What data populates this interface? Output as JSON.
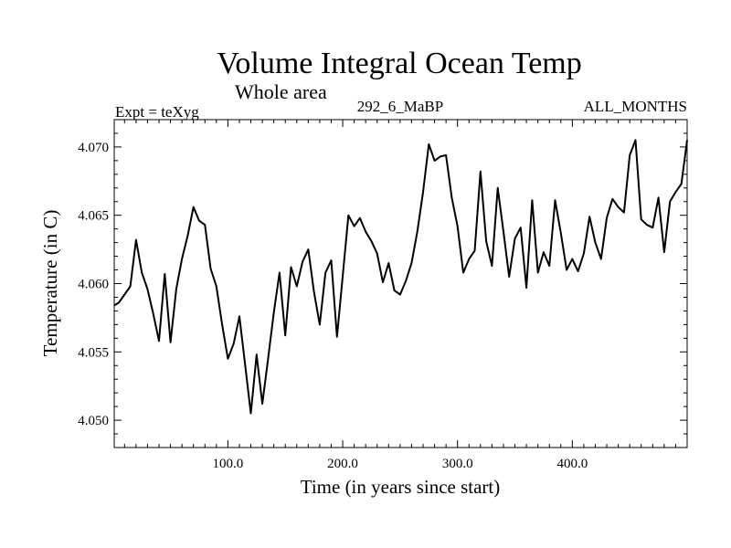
{
  "chart_data": {
    "type": "line",
    "title": "Volume Integral Ocean Temp",
    "subtitle": "Whole area",
    "left_label": "Expt = teXyg",
    "center_label": "292_6_MaBP",
    "right_label": "ALL_MONTHS",
    "xlabel": "Time (in years since start)",
    "ylabel": "Temperature (in C)",
    "xlim": [
      1,
      500
    ],
    "ylim": [
      4.048,
      4.072
    ],
    "x_ticks": [
      100,
      200,
      300,
      400
    ],
    "x_tick_labels": [
      "100.0",
      "200.0",
      "300.0",
      "400.0"
    ],
    "y_ticks": [
      4.05,
      4.055,
      4.06,
      4.065,
      4.07
    ],
    "y_tick_labels": [
      "4.050",
      "4.055",
      "4.060",
      "4.065",
      "4.070"
    ],
    "grid": false,
    "line_color": "#000000",
    "series": [
      {
        "x": [
          1,
          5,
          10,
          15,
          20,
          25,
          30,
          35,
          40,
          45,
          50,
          55,
          60,
          65,
          70,
          75,
          80,
          85,
          90,
          95,
          100,
          105,
          110,
          115,
          120,
          125,
          130,
          135,
          140,
          145,
          150,
          155,
          160,
          165,
          170,
          175,
          180,
          185,
          190,
          195,
          200,
          205,
          210,
          215,
          220,
          225,
          230,
          235,
          240,
          245,
          250,
          255,
          260,
          265,
          270,
          275,
          280,
          285,
          290,
          295,
          300,
          305,
          310,
          315,
          320,
          325,
          330,
          335,
          340,
          345,
          350,
          355,
          360,
          365,
          370,
          375,
          380,
          385,
          390,
          395,
          400,
          405,
          410,
          415,
          420,
          425,
          430,
          435,
          440,
          445,
          450,
          455,
          460,
          465,
          470,
          475,
          480,
          485,
          490,
          495,
          500
        ],
        "y": [
          4.0584,
          4.0586,
          4.0592,
          4.0598,
          4.0632,
          4.0608,
          4.0596,
          4.0578,
          4.0558,
          4.0607,
          4.0557,
          4.0596,
          4.0618,
          4.0635,
          4.0656,
          4.0646,
          4.0643,
          4.0611,
          4.0598,
          4.057,
          4.0545,
          4.0556,
          4.0576,
          4.0541,
          4.0505,
          4.0548,
          4.0512,
          4.0545,
          4.0579,
          4.0608,
          4.0562,
          4.0612,
          4.0598,
          4.0616,
          4.0625,
          4.0594,
          4.057,
          4.0608,
          4.0617,
          4.0561,
          4.0605,
          4.065,
          4.0642,
          4.0648,
          4.0638,
          4.0631,
          4.0622,
          4.0601,
          4.0615,
          4.0595,
          4.0592,
          4.0602,
          4.0615,
          4.0638,
          4.0667,
          4.0702,
          4.069,
          4.0693,
          4.0694,
          4.0663,
          4.0642,
          4.0608,
          4.0618,
          4.0624,
          4.0682,
          4.0631,
          4.0613,
          4.067,
          4.0638,
          4.0605,
          4.0633,
          4.0641,
          4.0597,
          4.0661,
          4.0608,
          4.0623,
          4.0613,
          4.0661,
          4.0637,
          4.061,
          4.0618,
          4.0609,
          4.0622,
          4.0649,
          4.063,
          4.0618,
          4.0648,
          4.0662,
          4.0656,
          4.0652,
          4.0694,
          4.0705,
          4.0647,
          4.0643,
          4.0641,
          4.0663,
          4.0623,
          4.066,
          4.0667,
          4.0673,
          4.0705
        ]
      }
    ]
  }
}
